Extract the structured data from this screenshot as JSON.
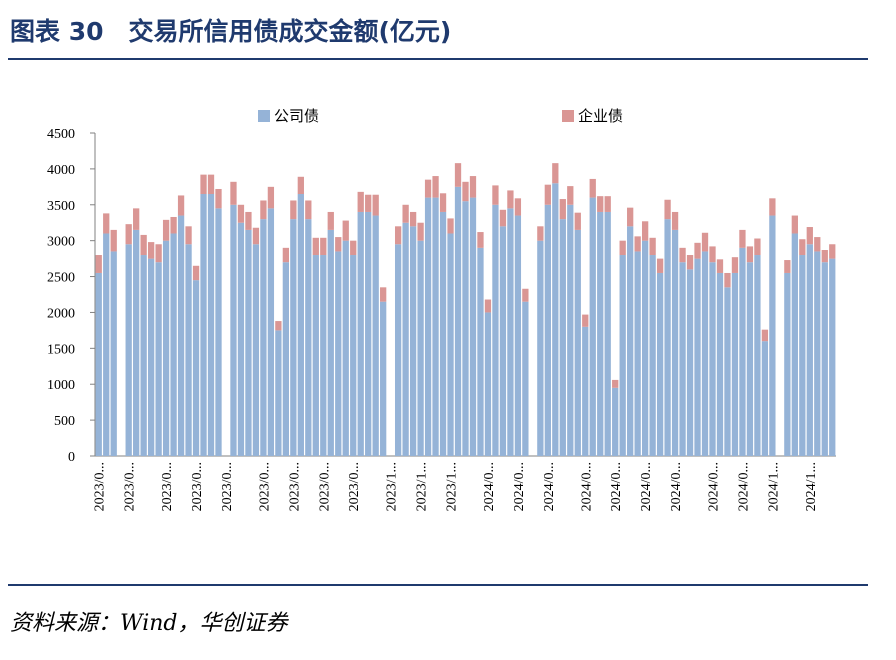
{
  "chart_data": {
    "type": "stacked-bar",
    "title": "图表 30　交易所信用债成交金额(亿元)",
    "source": "资料来源：Wind，华创证券",
    "categories": [
      "2023/0...",
      null,
      null,
      null,
      "2023/0...",
      null,
      null,
      null,
      null,
      "2023/0...",
      null,
      null,
      null,
      "2023/0...",
      null,
      null,
      null,
      "2023/0...",
      null,
      null,
      null,
      null,
      "2023/0...",
      null,
      null,
      null,
      "2023/0...",
      null,
      null,
      null,
      "2023/0...",
      null,
      null,
      null,
      "2023/0...",
      null,
      null,
      null,
      null,
      "2023/1...",
      null,
      null,
      null,
      "2023/1...",
      null,
      null,
      null,
      "2023/1...",
      null,
      null,
      null,
      null,
      "2024/0...",
      null,
      null,
      null,
      "2024/0...",
      null,
      null,
      null,
      "2024/0...",
      null,
      null,
      null,
      null,
      "2024/0...",
      null,
      null,
      null,
      "2024/0...",
      null,
      null,
      null,
      "2024/0...",
      null,
      null,
      null,
      "2024/0...",
      null,
      null,
      null,
      null,
      "2024/0...",
      null,
      null,
      null,
      "2024/0...",
      null,
      null,
      null,
      "2024/1...",
      null,
      null,
      null,
      null,
      "2024/1...",
      null,
      null,
      null
    ],
    "series": [
      {
        "name": "公司债",
        "color": "#95b3d7",
        "values": [
          2550,
          3100,
          2850,
          null,
          2950,
          3150,
          2800,
          2750,
          2700,
          3000,
          3100,
          3350,
          2950,
          2450,
          3650,
          3650,
          3450,
          null,
          3500,
          3250,
          3150,
          2950,
          3300,
          3450,
          1750,
          2700,
          3300,
          3650,
          3300,
          2800,
          2800,
          3150,
          2850,
          3000,
          2800,
          3400,
          3400,
          3350,
          2150,
          null,
          2950,
          3250,
          3200,
          3000,
          3600,
          3600,
          3400,
          3100,
          3750,
          3550,
          3600,
          2900,
          2000,
          3500,
          3200,
          3450,
          3350,
          2150,
          null,
          3000,
          3500,
          3800,
          3300,
          3500,
          3150,
          1800,
          3600,
          3400,
          3400,
          950,
          2800,
          3200,
          2850,
          3000,
          2800,
          2550,
          3300,
          3150,
          2700,
          2600,
          2750,
          2850,
          2700,
          2550,
          2350,
          2550,
          2900,
          2700,
          2800,
          1600,
          3350,
          null,
          2550,
          3100,
          2800,
          2950,
          2850,
          2700,
          2750
        ]
      },
      {
        "name": "企业债",
        "color": "#da9694",
        "values": [
          250,
          280,
          300,
          null,
          280,
          300,
          280,
          230,
          250,
          290,
          230,
          280,
          250,
          200,
          270,
          270,
          270,
          null,
          320,
          250,
          250,
          230,
          260,
          300,
          130,
          200,
          260,
          240,
          260,
          240,
          240,
          250,
          200,
          280,
          200,
          280,
          240,
          290,
          200,
          null,
          250,
          250,
          200,
          250,
          250,
          300,
          260,
          210,
          330,
          270,
          300,
          220,
          180,
          270,
          230,
          250,
          240,
          180,
          null,
          200,
          280,
          280,
          280,
          260,
          240,
          170,
          260,
          220,
          220,
          110,
          200,
          260,
          210,
          270,
          240,
          200,
          270,
          250,
          200,
          200,
          220,
          260,
          220,
          190,
          200,
          220,
          250,
          220,
          230,
          160,
          240,
          null,
          180,
          250,
          220,
          240,
          200,
          170,
          200
        ]
      }
    ],
    "ylim": [
      0,
      4500
    ],
    "yticks": [
      0,
      500,
      1000,
      1500,
      2000,
      2500,
      3000,
      3500,
      4000,
      4500
    ],
    "grid": false
  }
}
